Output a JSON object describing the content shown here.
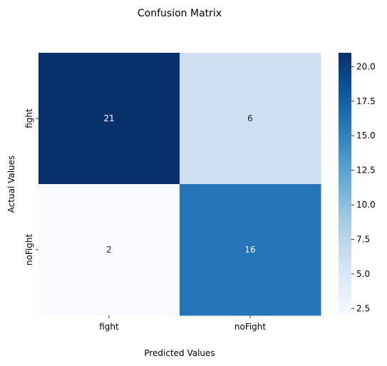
{
  "chart_data": {
    "type": "heatmap",
    "title": "Confusion Matrix",
    "xlabel": "Predicted Values",
    "ylabel": "Actual Values",
    "x_categories": [
      "fight",
      "noFight"
    ],
    "y_categories": [
      "fight",
      "noFight"
    ],
    "values": [
      [
        21,
        6
      ],
      [
        2,
        16
      ]
    ],
    "colormap": "Blues",
    "colorbar": {
      "min": 2,
      "max": 21,
      "ticks": [
        2.5,
        5.0,
        7.5,
        10.0,
        12.5,
        15.0,
        17.5,
        20.0
      ],
      "tick_labels": [
        "2.5",
        "5.0",
        "7.5",
        "10.0",
        "12.5",
        "15.0",
        "17.5",
        "20.0"
      ]
    },
    "annotations": true,
    "grid": false,
    "legend": "colorbar-right"
  }
}
